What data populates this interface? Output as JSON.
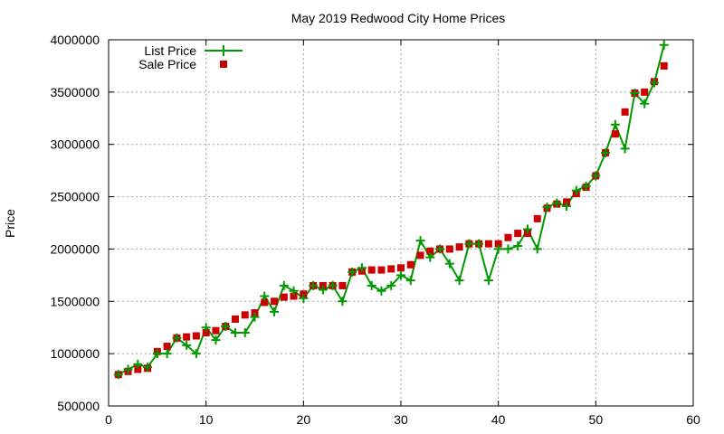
{
  "chart_data": {
    "type": "line",
    "title": "May 2019 Redwood City Home Prices",
    "xlabel": "",
    "ylabel": "Price",
    "xlim": [
      0,
      60
    ],
    "ylim": [
      500000,
      4000000
    ],
    "xticks": [
      0,
      10,
      20,
      30,
      40,
      50,
      60
    ],
    "yticks": [
      500000,
      1000000,
      1500000,
      2000000,
      2500000,
      3000000,
      3500000,
      4000000
    ],
    "xtick_labels": [
      "0",
      "10",
      "20",
      "30",
      "40",
      "50",
      "60"
    ],
    "ytick_labels": [
      "500000",
      "1000000",
      "1500000",
      "2000000",
      "2500000",
      "3000000",
      "3500000",
      "4000000"
    ],
    "grid": true,
    "legend_position": "top-left",
    "x": [
      1,
      2,
      3,
      4,
      5,
      6,
      7,
      8,
      9,
      10,
      11,
      12,
      13,
      14,
      15,
      16,
      17,
      18,
      19,
      20,
      21,
      22,
      23,
      24,
      25,
      26,
      27,
      28,
      29,
      30,
      31,
      32,
      33,
      34,
      35,
      36,
      37,
      38,
      39,
      40,
      41,
      42,
      43,
      44,
      45,
      46,
      47,
      48,
      49,
      50,
      51,
      52,
      53,
      54,
      55,
      56,
      57
    ],
    "series": [
      {
        "name": "List Price",
        "style": "linespoints",
        "color": "#009900",
        "marker": "plus",
        "values": [
          800000,
          850000,
          900000,
          870000,
          1000000,
          1000000,
          1150000,
          1080000,
          1000000,
          1250000,
          1130000,
          1260000,
          1200000,
          1200000,
          1350000,
          1550000,
          1400000,
          1650000,
          1600000,
          1530000,
          1650000,
          1610000,
          1650000,
          1500000,
          1780000,
          1820000,
          1650000,
          1600000,
          1650000,
          1750000,
          1700000,
          2080000,
          1920000,
          2000000,
          1860000,
          1700000,
          2050000,
          2050000,
          1700000,
          2000000,
          2000000,
          2030000,
          2190000,
          2000000,
          2400000,
          2440000,
          2410000,
          2560000,
          2600000,
          2700000,
          2920000,
          3190000,
          2960000,
          3490000,
          3390000,
          3590000,
          3950000
        ]
      },
      {
        "name": "Sale Price",
        "style": "points",
        "color": "#cc0000",
        "marker": "square",
        "values": [
          800000,
          830000,
          850000,
          860000,
          1020000,
          1070000,
          1150000,
          1160000,
          1170000,
          1200000,
          1220000,
          1260000,
          1330000,
          1370000,
          1390000,
          1490000,
          1500000,
          1540000,
          1550000,
          1570000,
          1650000,
          1650000,
          1650000,
          1650000,
          1780000,
          1790000,
          1800000,
          1800000,
          1810000,
          1820000,
          1850000,
          1940000,
          1980000,
          2000000,
          2000000,
          2020000,
          2050000,
          2050000,
          2050000,
          2050000,
          2110000,
          2150000,
          2150000,
          2290000,
          2390000,
          2430000,
          2450000,
          2530000,
          2590000,
          2700000,
          2920000,
          3100000,
          3310000,
          3490000,
          3500000,
          3600000,
          3750000
        ]
      }
    ]
  }
}
